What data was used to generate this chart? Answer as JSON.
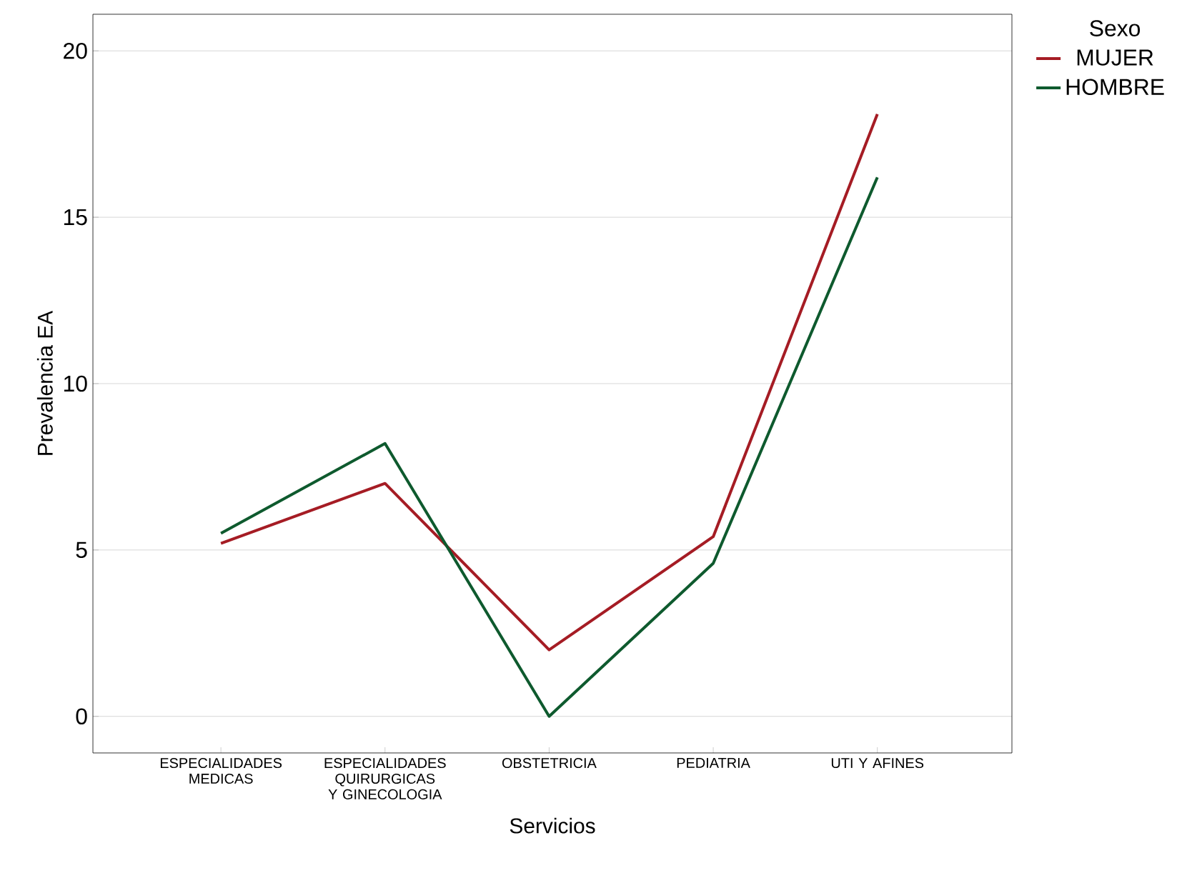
{
  "chart_data": {
    "type": "line",
    "xlabel": "Servicios",
    "ylabel": "Prevalencia EA",
    "legend_title": "Sexo",
    "categories": [
      "ESPECIALIDADES MEDICAS",
      "ESPECIALIDADES QUIRURGICAS Y GINECOLOGIA",
      "OBSTETRICIA",
      "PEDIATRIA",
      "UTI Y AFINES"
    ],
    "series": [
      {
        "name": "MUJER",
        "color": "#a51c24",
        "values": [
          5.2,
          7.0,
          2.0,
          5.4,
          18.1
        ]
      },
      {
        "name": "HOMBRE",
        "color": "#0e5a2e",
        "values": [
          5.5,
          8.2,
          0.0,
          4.6,
          16.2
        ]
      }
    ],
    "ylim": [
      -1.1,
      21.1
    ],
    "yticks": [
      0,
      5,
      10,
      15,
      20
    ],
    "grid": "y",
    "legend": "top right",
    "marker": "none",
    "line_style": "solid"
  }
}
